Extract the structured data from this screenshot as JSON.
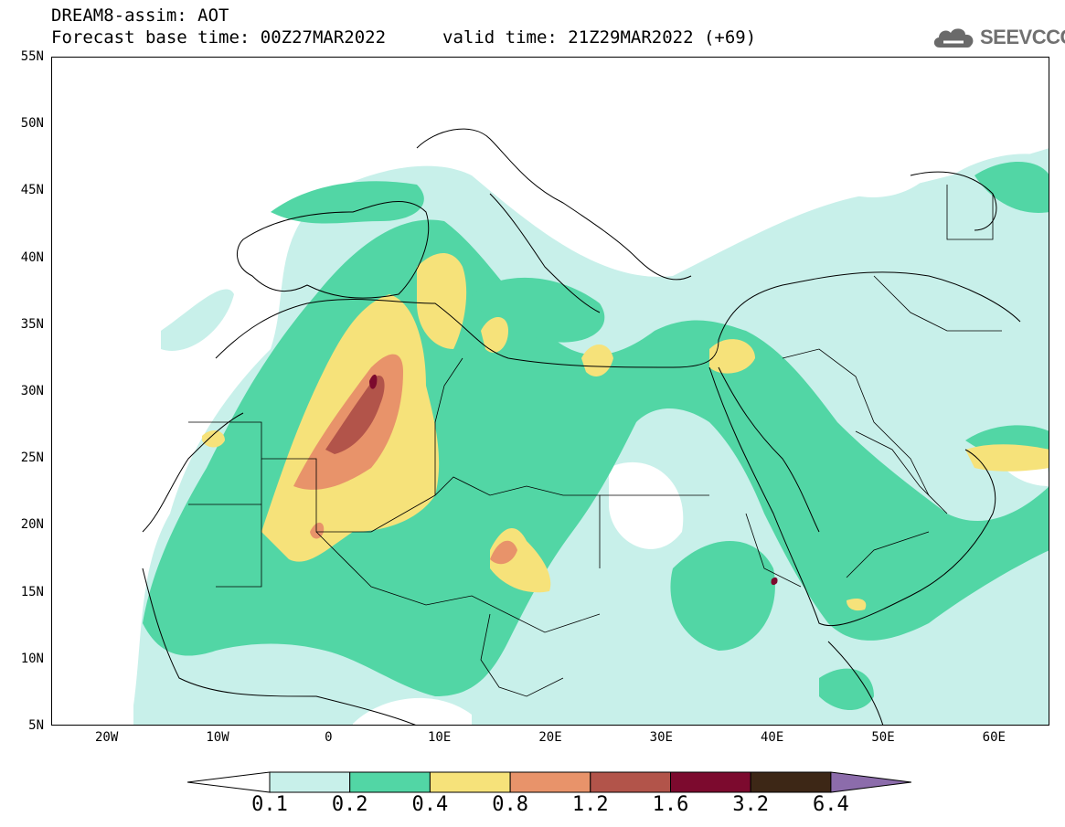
{
  "header": {
    "line1": "DREAM8-assim: AOT",
    "base_time": "Forecast base time: 00Z27MAR2022",
    "valid_time": "valid time: 21Z29MAR2022 (+69)"
  },
  "logo": {
    "text": "SEEVCCC",
    "icon": "cloud-icon"
  },
  "map": {
    "lat_labels": [
      "55N",
      "50N",
      "45N",
      "40N",
      "35N",
      "30N",
      "25N",
      "20N",
      "15N",
      "10N",
      "5N"
    ],
    "lon_labels": [
      "20W",
      "10W",
      "0",
      "10E",
      "20E",
      "30E",
      "40E",
      "50E",
      "60E"
    ],
    "extent": {
      "lon_min": -25,
      "lon_max": 65,
      "lat_min": 5,
      "lat_max": 55
    }
  },
  "colorbar": {
    "labels": [
      "0.1",
      "0.2",
      "0.4",
      "0.8",
      "1.2",
      "1.6",
      "3.2",
      "6.4"
    ],
    "colors": [
      "#c8f0ea",
      "#52d6a5",
      "#f6e27a",
      "#e8936a",
      "#b2544a",
      "#7c0a2e",
      "#3d2716",
      "#8c6cab"
    ],
    "under_color": "#ffffff",
    "over_color": "#8c6cab"
  }
}
